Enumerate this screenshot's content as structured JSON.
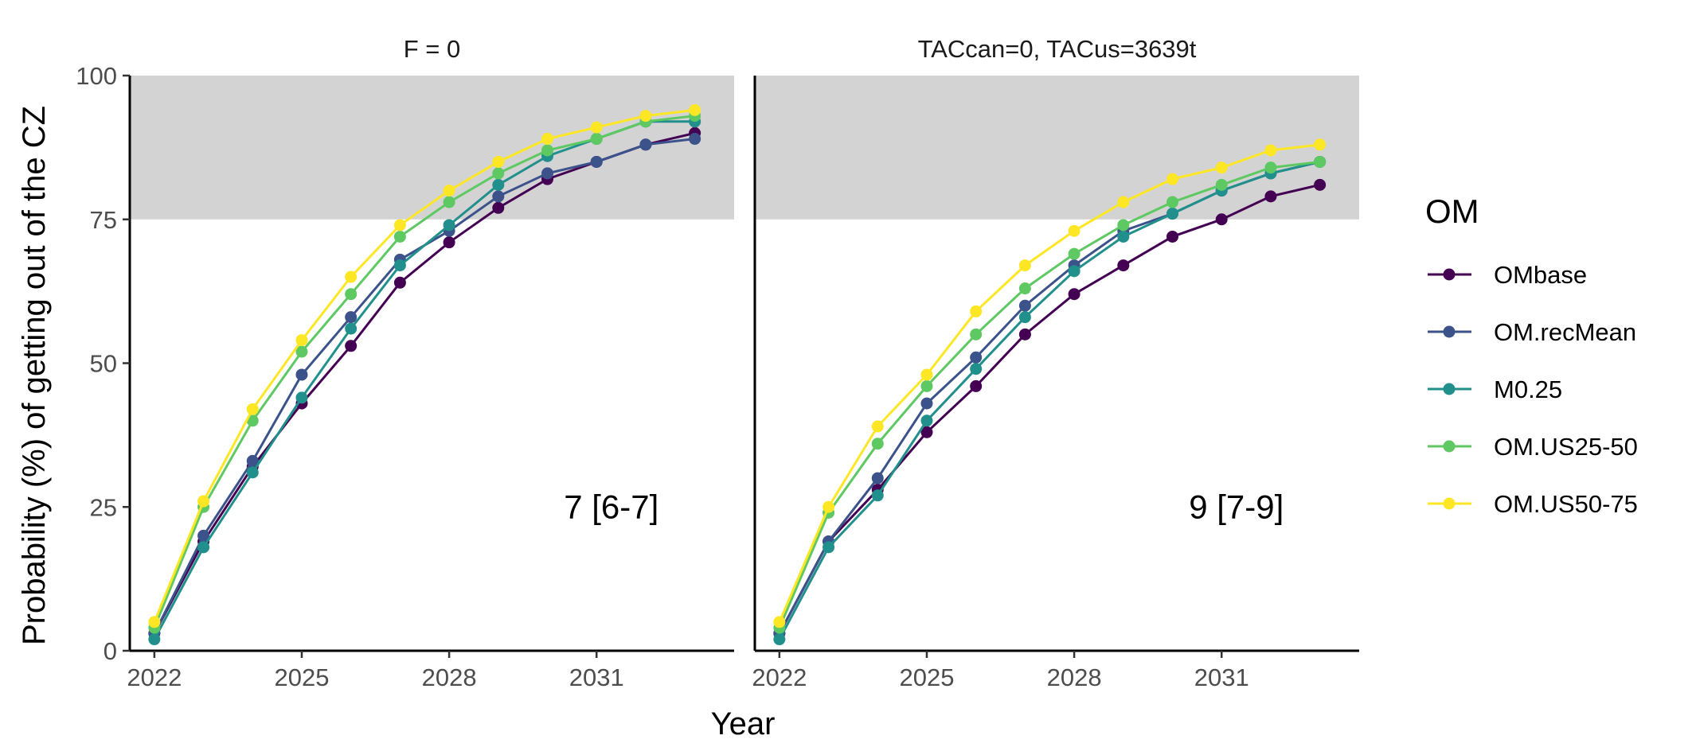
{
  "chart_data": {
    "type": "line",
    "ylabel": "Probability (%) of getting out of the CZ",
    "xlabel": "Year",
    "ylim": [
      0,
      100
    ],
    "xlim": [
      2021.5,
      2033.8
    ],
    "yticks": [
      0,
      25,
      50,
      75,
      100
    ],
    "xticks": [
      2022,
      2025,
      2028,
      2031
    ],
    "shaded_region": {
      "y_from": 75,
      "y_to": 100,
      "color": "#d3d3d3"
    },
    "grid": false,
    "legend": {
      "title": "OM",
      "placement": "right",
      "entries": [
        "OMbase",
        "OM.recMean",
        "M0.25",
        "OM.US25-50",
        "OM.US50-75"
      ]
    },
    "x": [
      2022,
      2023,
      2024,
      2025,
      2026,
      2027,
      2028,
      2029,
      2030,
      2031,
      2032,
      2033
    ],
    "colors": {
      "OMbase": "#440154",
      "OM.recMean": "#3b528b",
      "M0.25": "#21908c",
      "OM.US25-50": "#5ec962",
      "OM.US50-75": "#fde725"
    },
    "panels": [
      {
        "title": "F = 0",
        "annotation": {
          "text": "7 [6-7]",
          "x": 2031.3,
          "y": 25
        },
        "series": [
          {
            "name": "OMbase",
            "values": [
              3,
              19,
              32,
              43,
              53,
              64,
              71,
              77,
              82,
              85,
              88,
              90
            ]
          },
          {
            "name": "OM.recMean",
            "values": [
              3,
              20,
              33,
              48,
              58,
              68,
              73,
              79,
              83,
              85,
              88,
              89
            ]
          },
          {
            "name": "M0.25",
            "values": [
              2,
              18,
              31,
              44,
              56,
              67,
              74,
              81,
              86,
              89,
              92,
              92
            ]
          },
          {
            "name": "OM.US25-50",
            "values": [
              4,
              25,
              40,
              52,
              62,
              72,
              78,
              83,
              87,
              89,
              92,
              93
            ]
          },
          {
            "name": "OM.US50-75",
            "values": [
              5,
              26,
              42,
              54,
              65,
              74,
              80,
              85,
              89,
              91,
              93,
              94
            ]
          }
        ]
      },
      {
        "title": "TACcan=0, TACus=3639t",
        "annotation": {
          "text": "9 [7-9]",
          "x": 2031.3,
          "y": 25
        },
        "series": [
          {
            "name": "OMbase",
            "values": [
              3,
              19,
              28,
              38,
              46,
              55,
              62,
              67,
              72,
              75,
              79,
              81
            ]
          },
          {
            "name": "OM.recMean",
            "values": [
              3,
              19,
              30,
              43,
              51,
              60,
              67,
              73,
              76,
              80,
              83,
              85
            ]
          },
          {
            "name": "M0.25",
            "values": [
              2,
              18,
              27,
              40,
              49,
              58,
              66,
              72,
              76,
              80,
              83,
              85
            ]
          },
          {
            "name": "OM.US25-50",
            "values": [
              4,
              24,
              36,
              46,
              55,
              63,
              69,
              74,
              78,
              81,
              84,
              85
            ]
          },
          {
            "name": "OM.US50-75",
            "values": [
              5,
              25,
              39,
              48,
              59,
              67,
              73,
              78,
              82,
              84,
              87,
              88
            ]
          }
        ]
      }
    ]
  }
}
